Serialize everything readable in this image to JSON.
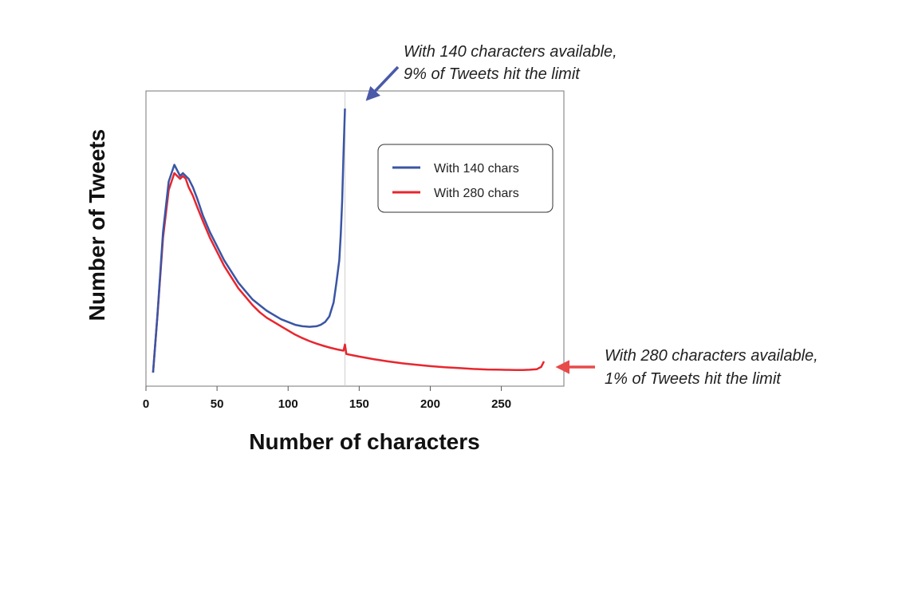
{
  "chart_data": {
    "type": "line",
    "title": "",
    "xlabel": "Number of characters",
    "ylabel": "Number of Tweets",
    "xlim": [
      0,
      294
    ],
    "ylim": [
      0,
      100
    ],
    "xticks": [
      0,
      50,
      100,
      150,
      200,
      250
    ],
    "x_range_shown": [
      5,
      280
    ],
    "limit_marker_x": 140,
    "legend": {
      "position": "upper-right",
      "entries": [
        "With 140 chars",
        "With 280 chars"
      ]
    },
    "series": [
      {
        "name": "With 140 chars",
        "color": "#3a55a4",
        "x": [
          5,
          8,
          12,
          16,
          20,
          24,
          26,
          28,
          30,
          33,
          36,
          40,
          45,
          50,
          55,
          60,
          65,
          70,
          75,
          80,
          85,
          90,
          95,
          100,
          105,
          110,
          115,
          120,
          123,
          126,
          129,
          132,
          134,
          136,
          137,
          138,
          139,
          140
        ],
        "y": [
          2,
          22,
          52,
          70,
          76,
          72,
          73,
          72,
          71,
          68,
          64,
          58,
          52,
          47,
          42,
          38,
          34,
          31,
          28,
          26,
          24,
          22.5,
          21,
          20,
          19,
          18.5,
          18.3,
          18.5,
          19,
          20,
          22,
          27,
          34,
          42,
          51,
          63,
          80,
          96
        ]
      },
      {
        "name": "With 280 chars",
        "color": "#e8262e",
        "x": [
          5,
          8,
          12,
          16,
          20,
          24,
          26,
          28,
          30,
          33,
          36,
          40,
          45,
          50,
          55,
          60,
          65,
          70,
          75,
          80,
          85,
          90,
          95,
          100,
          105,
          110,
          115,
          120,
          125,
          130,
          135,
          139,
          140,
          141,
          145,
          150,
          160,
          170,
          180,
          190,
          200,
          210,
          220,
          230,
          240,
          250,
          260,
          265,
          270,
          275,
          278,
          280
        ],
        "y": [
          2,
          22,
          50,
          67,
          73,
          71,
          72,
          71,
          68,
          65,
          61,
          56,
          50,
          45,
          40,
          36,
          32,
          29,
          26,
          23.5,
          21.5,
          20,
          18.5,
          17,
          15.5,
          14.3,
          13.2,
          12.3,
          11.5,
          10.8,
          10.2,
          9.8,
          12,
          8.6,
          8.2,
          7.7,
          6.8,
          6.0,
          5.3,
          4.8,
          4.3,
          3.9,
          3.6,
          3.3,
          3.1,
          3.0,
          2.9,
          2.9,
          3.0,
          3.2,
          4.0,
          6.0
        ]
      }
    ],
    "annotations": [
      {
        "lines": [
          "With 140 characters available,",
          "9% of Tweets hit the limit"
        ],
        "color": "#4a5aa8",
        "points_to": {
          "x": 140,
          "y": 96
        }
      },
      {
        "lines": [
          "With 280 characters available,",
          "1% of Tweets hit the limit"
        ],
        "color": "#e84a4a",
        "points_to": {
          "x": 280,
          "y": 6
        }
      }
    ]
  }
}
